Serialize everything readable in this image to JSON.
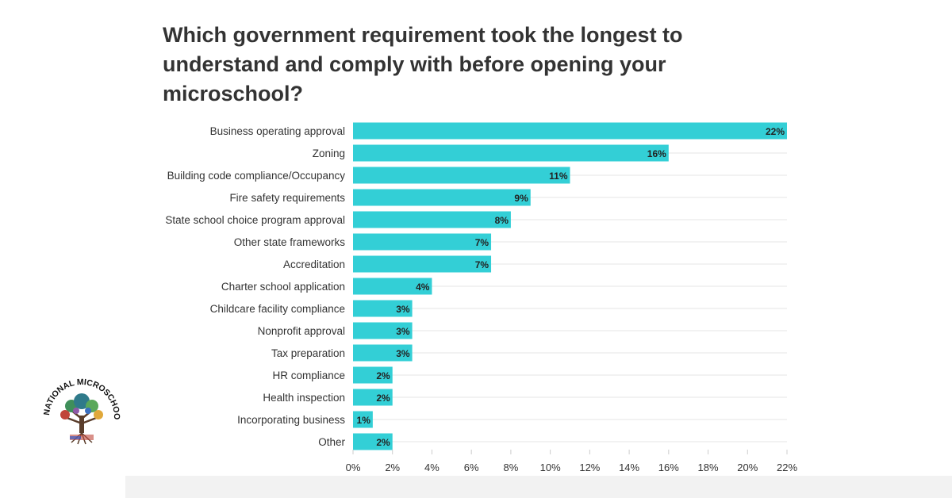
{
  "chart_data": {
    "type": "bar",
    "orientation": "horizontal",
    "title": "Which government requirement took the longest to understand and comply with before opening your microschool?",
    "categories": [
      "Business operating approval",
      "Zoning",
      "Building code compliance/Occupancy",
      "Fire safety requirements",
      "State school choice program approval",
      "Other state frameworks",
      "Accreditation",
      "Charter school application",
      "Childcare facility compliance",
      "Nonprofit approval",
      "Tax preparation",
      "HR compliance",
      "Health inspection",
      "Incorporating business",
      "Other"
    ],
    "values": [
      22,
      16,
      11,
      9,
      8,
      7,
      7,
      4,
      3,
      3,
      3,
      2,
      2,
      1,
      2
    ],
    "data_labels": [
      "22%",
      "16%",
      "11%",
      "9%",
      "8%",
      "7%",
      "7%",
      "4%",
      "3%",
      "3%",
      "3%",
      "2%",
      "2%",
      "1%",
      "2%"
    ],
    "x_ticks": [
      0,
      2,
      4,
      6,
      8,
      10,
      12,
      14,
      16,
      18,
      20,
      22
    ],
    "x_tick_labels": [
      "0%",
      "2%",
      "4%",
      "6%",
      "8%",
      "10%",
      "12%",
      "14%",
      "16%",
      "18%",
      "20%",
      "22%"
    ],
    "xlim": [
      0,
      22
    ],
    "xlabel": "",
    "ylabel": "",
    "grid": true,
    "bar_color": "#33cfd6",
    "label_color": "#222222"
  },
  "logo": {
    "text": "NATIONAL MICROSCHOOLING CENTER"
  }
}
